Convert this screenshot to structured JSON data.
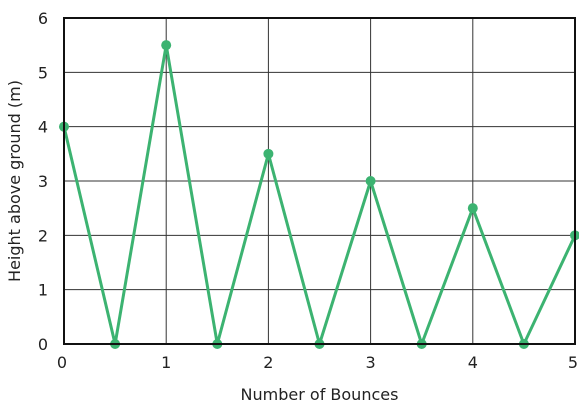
{
  "chart_data": {
    "type": "line",
    "title": "",
    "xlabel": "Number of Bounces",
    "ylabel": "Height above ground (m)",
    "xlim": [
      0,
      5
    ],
    "ylim": [
      0,
      6
    ],
    "xticks": [
      0,
      1,
      2,
      3,
      4,
      5
    ],
    "yticks": [
      0,
      1,
      2,
      3,
      4,
      5,
      6
    ],
    "grid": true,
    "legend": "none",
    "series": [
      {
        "color": "#3cb371",
        "x": [
          0,
          0.5,
          1,
          1.5,
          2,
          2.5,
          3,
          3.5,
          4,
          4.5,
          5
        ],
        "y": [
          4,
          0,
          5.5,
          0,
          3.5,
          0,
          3,
          0,
          2.5,
          0,
          2
        ]
      }
    ]
  }
}
